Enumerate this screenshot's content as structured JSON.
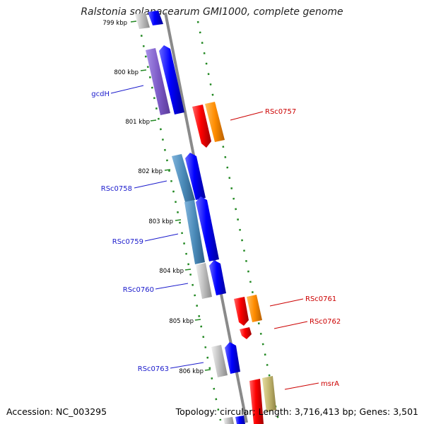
{
  "title": "Ralstonia solanacearum GMI1000, complete genome",
  "footer": {
    "accession": "Accession: NC_003295",
    "topology": "Topology: circular; Length: 3,716,413 bp; Genes: 3,501"
  },
  "kbp_labels": [
    "799 kbp",
    "800 kbp",
    "801 kbp",
    "802 kbp",
    "803 kbp",
    "804 kbp",
    "805 kbp",
    "806 kbp"
  ],
  "genes_reverse": [
    {
      "label": "gcdH",
      "color": "#1a1acc"
    },
    {
      "label": "RSc0758",
      "color": "#1a1acc"
    },
    {
      "label": "RSc0759",
      "color": "#1a1acc"
    },
    {
      "label": "RSc0760",
      "color": "#1a1acc"
    },
    {
      "label": "RSc0763",
      "color": "#1a1acc"
    }
  ],
  "genes_forward": [
    {
      "label": "RSc0757",
      "color": "#cc0000"
    },
    {
      "label": "RSc0761",
      "color": "#cc0000"
    },
    {
      "label": "RSc0762",
      "color": "#cc0000"
    },
    {
      "label": "msrA",
      "color": "#cc0000"
    }
  ],
  "colors": {
    "backbone": "#8a8a8a",
    "tick": "#228822",
    "reverse_cds": "#0000ff",
    "forward_cds": "#ff0000",
    "forward_feature": "#ff8c00",
    "msrA_feature": "#c2b66e",
    "gcdH_feature": "#7e5cc8",
    "rsc0758_feature": "#4a8ab8",
    "grey_feature": "#b4b4b4"
  }
}
